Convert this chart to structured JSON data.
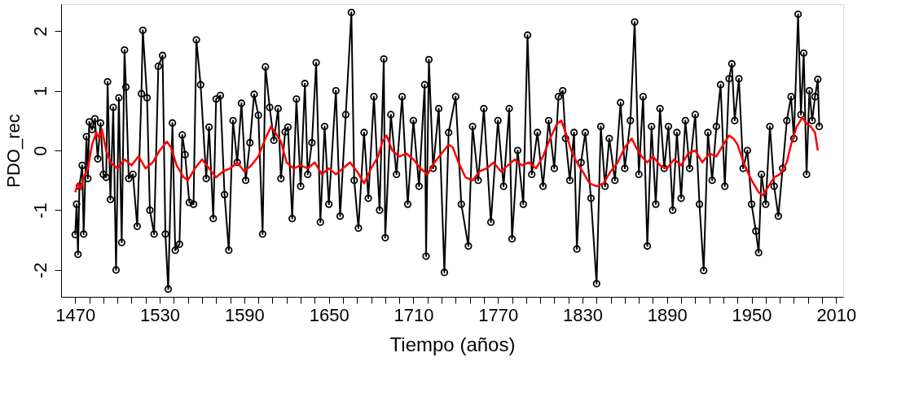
{
  "chart_data": {
    "type": "line",
    "xlabel": "Tiempo (años)",
    "ylabel": "PDO_rec",
    "xlim": [
      1460,
      2015
    ],
    "ylim": [
      -2.45,
      2.45
    ],
    "xticks": [
      1470,
      {
        "value": 1480,
        "label": null
      },
      {
        "value": 1490,
        "label": null
      },
      {
        "value": 1500,
        "label": null
      },
      {
        "value": 1510,
        "label": null
      },
      {
        "value": 1520,
        "label": null
      },
      1530,
      {
        "value": 1540,
        "label": null
      },
      {
        "value": 1550,
        "label": null
      },
      {
        "value": 1560,
        "label": null
      },
      {
        "value": 1570,
        "label": null
      },
      {
        "value": 1580,
        "label": null
      },
      1590,
      {
        "value": 1600,
        "label": null
      },
      {
        "value": 1610,
        "label": null
      },
      {
        "value": 1620,
        "label": null
      },
      {
        "value": 1630,
        "label": null
      },
      {
        "value": 1640,
        "label": null
      },
      1650,
      {
        "value": 1660,
        "label": null
      },
      {
        "value": 1670,
        "label": null
      },
      {
        "value": 1680,
        "label": null
      },
      {
        "value": 1690,
        "label": null
      },
      {
        "value": 1700,
        "label": null
      },
      1710,
      {
        "value": 1720,
        "label": null
      },
      {
        "value": 1730,
        "label": null
      },
      {
        "value": 1740,
        "label": null
      },
      {
        "value": 1750,
        "label": null
      },
      {
        "value": 1760,
        "label": null
      },
      1770,
      {
        "value": 1780,
        "label": null
      },
      {
        "value": 1790,
        "label": null
      },
      {
        "value": 1800,
        "label": null
      },
      {
        "value": 1810,
        "label": null
      },
      {
        "value": 1820,
        "label": null
      },
      1830,
      {
        "value": 1840,
        "label": null
      },
      {
        "value": 1850,
        "label": null
      },
      {
        "value": 1860,
        "label": null
      },
      {
        "value": 1870,
        "label": null
      },
      {
        "value": 1880,
        "label": null
      },
      1890,
      {
        "value": 1900,
        "label": null
      },
      {
        "value": 1910,
        "label": null
      },
      {
        "value": 1920,
        "label": null
      },
      {
        "value": 1930,
        "label": null
      },
      {
        "value": 1940,
        "label": null
      },
      1950,
      {
        "value": 1960,
        "label": null
      },
      {
        "value": 1970,
        "label": null
      },
      {
        "value": 1980,
        "label": null
      },
      {
        "value": 1990,
        "label": null
      },
      {
        "value": 2000,
        "label": null
      },
      2010
    ],
    "yticks": [
      -2,
      -1,
      0,
      1,
      2
    ],
    "grid": false,
    "series": [
      {
        "color": "#000000",
        "marker": "circle",
        "line_style": "solid",
        "x": [
          1470,
          1471,
          1472,
          1473,
          1475,
          1476,
          1478,
          1479,
          1480,
          1482,
          1484,
          1486,
          1488,
          1490,
          1492,
          1493,
          1495,
          1497,
          1499,
          1501,
          1503,
          1505,
          1506,
          1508,
          1511,
          1514,
          1517,
          1518,
          1521,
          1523,
          1526,
          1529,
          1532,
          1534,
          1536,
          1539,
          1541,
          1544,
          1546,
          1548,
          1551,
          1554,
          1556,
          1559,
          1563,
          1565,
          1568,
          1570,
          1573,
          1576,
          1579,
          1582,
          1585,
          1588,
          1591,
          1594,
          1597,
          1600,
          1603,
          1605,
          1608,
          1611,
          1614,
          1616,
          1619,
          1621,
          1624,
          1627,
          1630,
          1633,
          1635,
          1638,
          1641,
          1644,
          1647,
          1650,
          1655,
          1658,
          1662,
          1666,
          1668,
          1671,
          1675,
          1678,
          1682,
          1686,
          1689,
          1690,
          1694,
          1698,
          1702,
          1706,
          1710,
          1714,
          1718,
          1719,
          1721,
          1724,
          1728,
          1732,
          1735,
          1740,
          1744,
          1749,
          1752,
          1756,
          1760,
          1765,
          1770,
          1774,
          1778,
          1780,
          1784,
          1788,
          1791,
          1794,
          1798,
          1802,
          1806,
          1810,
          1813,
          1816,
          1818,
          1821,
          1824,
          1826,
          1829,
          1832,
          1836,
          1840,
          1843,
          1846,
          1849,
          1853,
          1857,
          1860,
          1864,
          1867,
          1870,
          1873,
          1876,
          1879,
          1882,
          1885,
          1888,
          1891,
          1894,
          1897,
          1900,
          1903,
          1906,
          1910,
          1913,
          1916,
          1919,
          1922,
          1925,
          1928,
          1931,
          1934,
          1936,
          1938,
          1941,
          1944,
          1947,
          1950,
          1953,
          1955,
          1957,
          1960,
          1963,
          1966,
          1969,
          1972,
          1975,
          1978,
          1980,
          1983,
          1985,
          1987,
          1989,
          1991,
          1993,
          1995,
          1997,
          1998
        ],
        "values": [
          -1.41,
          -0.9,
          -1.74,
          -0.6,
          -0.25,
          -1.4,
          0.23,
          -0.47,
          0.48,
          0.35,
          0.53,
          -0.14,
          0.46,
          -0.4,
          -0.45,
          1.15,
          -0.82,
          0.72,
          -2.0,
          0.88,
          -1.54,
          1.68,
          1.06,
          -0.47,
          -0.4,
          -1.27,
          0.95,
          2.01,
          0.88,
          -1.0,
          -1.4,
          1.41,
          1.59,
          -1.4,
          -2.32,
          0.46,
          -1.67,
          -1.57,
          0.26,
          -0.07,
          -0.87,
          -0.9,
          1.85,
          1.1,
          -0.47,
          0.39,
          -1.14,
          0.86,
          0.92,
          -0.74,
          -1.67,
          0.5,
          -0.2,
          0.79,
          -0.5,
          0.13,
          0.94,
          0.59,
          -1.4,
          1.4,
          0.72,
          0.17,
          0.7,
          -0.47,
          0.31,
          0.39,
          -1.14,
          0.86,
          -0.6,
          1.12,
          -0.4,
          0.13,
          1.47,
          -1.2,
          0.4,
          -0.9,
          1.0,
          -1.1,
          0.6,
          2.31,
          -0.5,
          -1.3,
          0.3,
          -0.8,
          0.9,
          -1.0,
          1.53,
          -1.46,
          0.6,
          -0.4,
          0.9,
          -0.9,
          0.5,
          -0.6,
          1.1,
          -1.77,
          1.52,
          -0.3,
          0.7,
          -2.04,
          0.3,
          0.9,
          -0.9,
          -1.6,
          0.4,
          -0.5,
          0.7,
          -1.2,
          0.5,
          -0.6,
          0.7,
          -1.48,
          0.0,
          -0.9,
          1.93,
          -0.4,
          0.3,
          -0.6,
          0.5,
          -0.3,
          0.9,
          1.0,
          0.2,
          -0.5,
          0.3,
          -1.65,
          -0.2,
          0.3,
          -0.8,
          -2.23,
          0.4,
          -0.6,
          0.2,
          -0.5,
          0.8,
          -0.3,
          0.5,
          2.15,
          -0.4,
          0.9,
          -1.6,
          0.4,
          -0.9,
          0.7,
          -0.3,
          0.4,
          -1.0,
          0.3,
          -0.8,
          0.5,
          -0.3,
          0.6,
          -0.9,
          -2.01,
          0.3,
          -0.5,
          0.4,
          1.1,
          -0.6,
          1.2,
          1.45,
          0.5,
          1.2,
          -0.3,
          0.0,
          -0.9,
          -1.35,
          -1.71,
          -0.4,
          -0.9,
          0.4,
          -0.6,
          -1.1,
          -0.3,
          0.5,
          0.9,
          0.2,
          2.28,
          0.6,
          1.63,
          -0.4,
          1.0,
          0.5,
          0.9,
          1.19,
          0.4
        ]
      },
      {
        "color": "#ff0000",
        "marker": "none",
        "line_style": "solid",
        "x": [
          1470,
          1472,
          1474,
          1476,
          1479,
          1482,
          1485,
          1487,
          1489,
          1492,
          1495,
          1500,
          1505,
          1510,
          1515,
          1520,
          1525,
          1530,
          1535,
          1538,
          1542,
          1547,
          1550,
          1555,
          1560,
          1565,
          1570,
          1575,
          1580,
          1585,
          1590,
          1595,
          1600,
          1605,
          1609,
          1612,
          1616,
          1620,
          1625,
          1630,
          1635,
          1640,
          1645,
          1650,
          1655,
          1660,
          1665,
          1670,
          1675,
          1680,
          1685,
          1688,
          1691,
          1695,
          1700,
          1705,
          1710,
          1715,
          1720,
          1725,
          1730,
          1735,
          1738,
          1742,
          1747,
          1752,
          1757,
          1762,
          1767,
          1772,
          1777,
          1782,
          1787,
          1792,
          1797,
          1802,
          1807,
          1812,
          1815,
          1818,
          1822,
          1826,
          1830,
          1835,
          1840,
          1845,
          1850,
          1855,
          1860,
          1865,
          1868,
          1872,
          1876,
          1880,
          1885,
          1890,
          1895,
          1900,
          1905,
          1910,
          1915,
          1920,
          1925,
          1930,
          1934,
          1937,
          1940,
          1945,
          1950,
          1955,
          1958,
          1962,
          1966,
          1970,
          1975,
          1978,
          1982,
          1986,
          1989,
          1992,
          1995,
          1997
        ],
        "values": [
          -0.7,
          -0.55,
          -0.65,
          -0.45,
          -0.3,
          0.1,
          0.3,
          0.2,
          0.35,
          0.0,
          -0.2,
          -0.3,
          -0.15,
          -0.25,
          -0.1,
          -0.3,
          -0.2,
          0.0,
          0.15,
          0.05,
          -0.25,
          -0.45,
          -0.5,
          -0.3,
          -0.15,
          -0.3,
          -0.45,
          -0.35,
          -0.3,
          -0.2,
          -0.35,
          -0.25,
          -0.1,
          0.2,
          0.4,
          0.3,
          0.15,
          -0.2,
          -0.3,
          -0.25,
          -0.3,
          -0.2,
          -0.4,
          -0.3,
          -0.4,
          -0.3,
          -0.2,
          -0.35,
          -0.55,
          -0.3,
          -0.1,
          0.15,
          0.25,
          0.0,
          -0.1,
          -0.05,
          -0.15,
          -0.3,
          -0.4,
          -0.2,
          -0.05,
          0.1,
          0.05,
          -0.2,
          -0.45,
          -0.5,
          -0.35,
          -0.3,
          -0.2,
          -0.35,
          -0.25,
          -0.15,
          -0.25,
          -0.2,
          -0.3,
          -0.1,
          0.2,
          0.45,
          0.5,
          0.3,
          0.0,
          -0.2,
          -0.35,
          -0.55,
          -0.6,
          -0.55,
          -0.35,
          -0.2,
          0.05,
          0.2,
          0.05,
          -0.1,
          -0.2,
          -0.1,
          -0.25,
          -0.3,
          -0.15,
          -0.25,
          -0.05,
          0.0,
          -0.2,
          -0.05,
          -0.1,
          0.1,
          0.25,
          0.2,
          0.1,
          -0.25,
          -0.5,
          -0.7,
          -0.75,
          -0.6,
          -0.45,
          -0.4,
          -0.2,
          0.1,
          0.4,
          0.55,
          0.45,
          0.4,
          0.3,
          0.0
        ]
      }
    ]
  }
}
